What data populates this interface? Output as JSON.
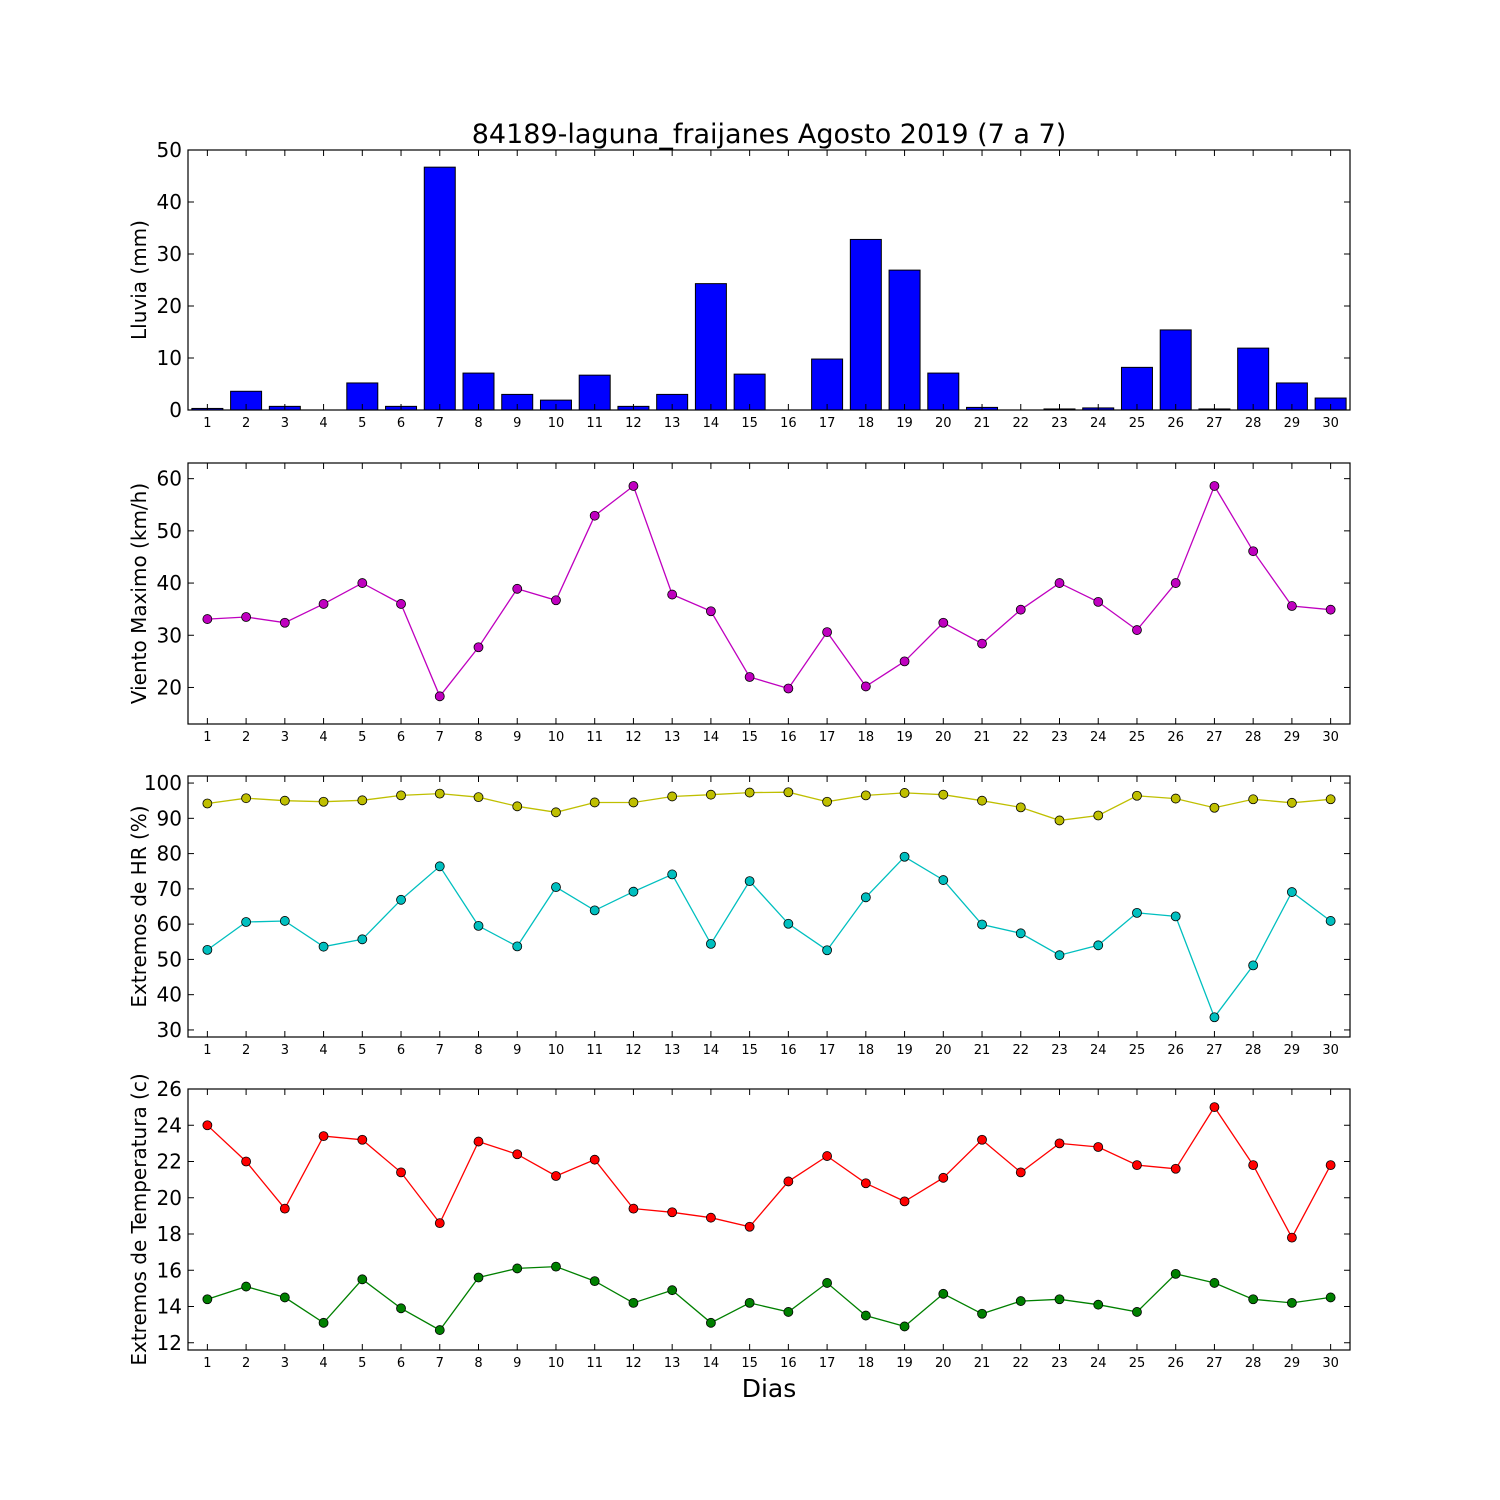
{
  "figure": {
    "title": "84189-laguna_fraijanes Agosto 2019  (7 a 7)",
    "xlabel": "Dias"
  },
  "chart_data": [
    {
      "type": "bar",
      "ylabel": "Lluvia (mm)",
      "ylim": [
        0,
        50
      ],
      "yticks": [
        0,
        10,
        20,
        30,
        40,
        50
      ],
      "categories": [
        1,
        2,
        3,
        4,
        5,
        6,
        7,
        8,
        9,
        10,
        11,
        12,
        13,
        14,
        15,
        16,
        17,
        18,
        19,
        20,
        21,
        22,
        23,
        24,
        25,
        26,
        27,
        28,
        29,
        30
      ],
      "series": [
        {
          "color": "#0000ff",
          "values": [
            0.3,
            3.6,
            0.7,
            0,
            5.2,
            0.7,
            46.7,
            7.1,
            3.0,
            1.9,
            6.7,
            0.7,
            3.0,
            24.3,
            6.9,
            0,
            9.8,
            32.8,
            26.9,
            7.1,
            0.5,
            0,
            0.2,
            0.4,
            8.2,
            15.4,
            0.2,
            11.9,
            5.2,
            2.3
          ]
        }
      ]
    },
    {
      "type": "line",
      "ylabel": "Viento Maximo (km/h)",
      "ylim": [
        13,
        63
      ],
      "yticks": [
        20,
        30,
        40,
        50,
        60
      ],
      "x": [
        1,
        2,
        3,
        4,
        5,
        6,
        7,
        8,
        9,
        10,
        11,
        12,
        13,
        14,
        15,
        16,
        17,
        18,
        19,
        20,
        21,
        22,
        23,
        24,
        25,
        26,
        27,
        28,
        29,
        30
      ],
      "series": [
        {
          "color": "#bf00bf",
          "values": [
            33.1,
            33.5,
            32.4,
            36.0,
            40.0,
            36.0,
            18.3,
            27.7,
            38.9,
            36.7,
            52.9,
            58.6,
            37.8,
            34.6,
            22.0,
            19.8,
            30.6,
            20.2,
            25.0,
            32.4,
            28.4,
            34.9,
            40.0,
            36.4,
            31.0,
            40.0,
            58.6,
            46.1,
            35.6,
            34.9
          ]
        }
      ]
    },
    {
      "type": "line",
      "ylabel": "Extremos de HR (%)",
      "ylim": [
        28,
        102
      ],
      "yticks": [
        30,
        40,
        50,
        60,
        70,
        80,
        90,
        100
      ],
      "x": [
        1,
        2,
        3,
        4,
        5,
        6,
        7,
        8,
        9,
        10,
        11,
        12,
        13,
        14,
        15,
        16,
        17,
        18,
        19,
        20,
        21,
        22,
        23,
        24,
        25,
        26,
        27,
        28,
        29,
        30
      ],
      "series": [
        {
          "color": "#bfbf00",
          "values": [
            94.2,
            95.7,
            95.0,
            94.7,
            95.1,
            96.5,
            97.0,
            96.0,
            93.4,
            91.7,
            94.5,
            94.5,
            96.2,
            96.7,
            97.3,
            97.4,
            94.7,
            96.5,
            97.2,
            96.7,
            95.0,
            93.1,
            89.4,
            90.8,
            96.4,
            95.6,
            93.0,
            95.4,
            94.4,
            95.4
          ]
        },
        {
          "color": "#00bfbf",
          "values": [
            52.7,
            60.6,
            60.9,
            53.6,
            55.7,
            66.9,
            76.4,
            59.5,
            53.7,
            70.5,
            63.9,
            69.2,
            74.1,
            54.4,
            72.2,
            60.1,
            52.6,
            67.6,
            79.1,
            72.5,
            59.9,
            57.4,
            51.2,
            54.0,
            63.2,
            62.2,
            33.6,
            48.3,
            69.1,
            60.9
          ]
        }
      ]
    },
    {
      "type": "line",
      "ylabel": "Extremos de Temperatura (c)",
      "ylim": [
        11.6,
        26
      ],
      "yticks": [
        12,
        14,
        16,
        18,
        20,
        22,
        24,
        26
      ],
      "x": [
        1,
        2,
        3,
        4,
        5,
        6,
        7,
        8,
        9,
        10,
        11,
        12,
        13,
        14,
        15,
        16,
        17,
        18,
        19,
        20,
        21,
        22,
        23,
        24,
        25,
        26,
        27,
        28,
        29,
        30
      ],
      "series": [
        {
          "color": "#ff0000",
          "values": [
            24.0,
            22.0,
            19.4,
            23.4,
            23.2,
            21.4,
            18.6,
            23.1,
            22.4,
            21.2,
            22.1,
            19.4,
            19.2,
            18.9,
            18.4,
            20.9,
            22.3,
            20.8,
            19.8,
            21.1,
            23.2,
            21.4,
            23.0,
            22.8,
            21.8,
            21.6,
            25.0,
            21.8,
            17.8,
            21.8
          ]
        },
        {
          "color": "#008000",
          "values": [
            14.4,
            15.1,
            14.5,
            13.1,
            15.5,
            13.9,
            12.7,
            15.6,
            16.1,
            16.2,
            15.4,
            14.2,
            14.9,
            13.1,
            14.2,
            13.7,
            15.3,
            13.5,
            12.9,
            14.7,
            13.6,
            14.3,
            14.4,
            14.1,
            13.7,
            15.8,
            15.3,
            14.4,
            14.2,
            14.5
          ]
        }
      ]
    }
  ]
}
